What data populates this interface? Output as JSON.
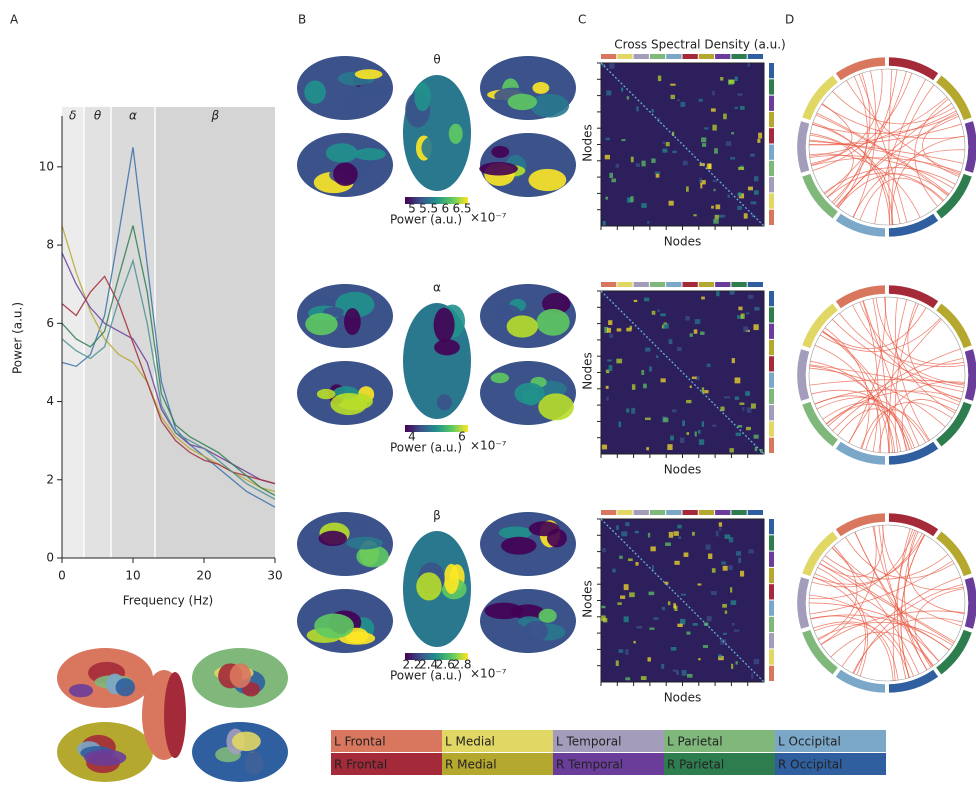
{
  "panel_labels": [
    "A",
    "B",
    "C",
    "D"
  ],
  "chart_data": {
    "type": "line",
    "xlabel": "Frequency (Hz)",
    "ylabel": "Power (a.u.)",
    "xlim": [
      0,
      30
    ],
    "ylim": [
      0,
      11.3
    ],
    "xticks": [
      0,
      10,
      20,
      30
    ],
    "yticks": [
      0,
      2,
      4,
      6,
      8,
      10
    ],
    "x": [
      0,
      2,
      4,
      6,
      8,
      10,
      12,
      14,
      16,
      18,
      20,
      22,
      24,
      26,
      28,
      30
    ],
    "bands": [
      {
        "label": "δ",
        "range": [
          0,
          3
        ],
        "color": "#ececec"
      },
      {
        "label": "θ",
        "range": [
          3.2,
          6.8
        ],
        "color": "#e2e2e2"
      },
      {
        "label": "α",
        "range": [
          7,
          13
        ],
        "color": "#dadada"
      },
      {
        "label": "β",
        "range": [
          13.2,
          30
        ],
        "color": "#d5d5d5"
      }
    ],
    "series": [
      {
        "color": "#3b6ea8",
        "values": [
          5.0,
          4.9,
          5.2,
          6.2,
          8.3,
          10.5,
          7.5,
          4.5,
          3.3,
          2.9,
          2.6,
          2.3,
          2.0,
          1.7,
          1.5,
          1.3
        ]
      },
      {
        "color": "#b5a82f",
        "values": [
          8.5,
          7.3,
          6.3,
          5.6,
          5.2,
          5.0,
          4.5,
          3.6,
          3.1,
          2.8,
          2.6,
          2.4,
          2.2,
          2.0,
          1.8,
          1.7
        ]
      },
      {
        "color": "#6a3d9a",
        "values": [
          7.8,
          7.0,
          6.4,
          6.0,
          5.8,
          5.6,
          5.0,
          3.8,
          3.2,
          2.9,
          2.8,
          2.6,
          2.4,
          2.2,
          2.0,
          1.9
        ]
      },
      {
        "color": "#a42a3a",
        "values": [
          6.5,
          6.2,
          6.8,
          7.2,
          6.5,
          5.5,
          4.5,
          3.5,
          3.0,
          2.7,
          2.5,
          2.4,
          2.2,
          2.1,
          2.0,
          1.9
        ]
      },
      {
        "color": "#2e7d4f",
        "values": [
          6.0,
          5.6,
          5.4,
          5.8,
          7.2,
          8.5,
          6.8,
          4.2,
          3.4,
          3.1,
          2.9,
          2.7,
          2.4,
          2.1,
          1.8,
          1.6
        ]
      },
      {
        "color": "#4a8f8f",
        "values": [
          5.6,
          5.3,
          5.1,
          5.4,
          6.6,
          7.6,
          6.0,
          3.9,
          3.2,
          3.0,
          2.8,
          2.5,
          2.2,
          1.9,
          1.7,
          1.5
        ]
      }
    ]
  },
  "brain_rows": [
    {
      "title": "θ",
      "colorbar_label": "Power (a.u.)",
      "exponent": "×10⁻⁷",
      "ticks": [
        "5",
        "5.5",
        "6",
        "6.5"
      ]
    },
    {
      "title": "α",
      "colorbar_label": "Power (a.u.)",
      "exponent": "×10⁻⁷",
      "ticks": [
        "4",
        "6"
      ]
    },
    {
      "title": "β",
      "colorbar_label": "Power (a.u.)",
      "exponent": "×10⁻⁷",
      "ticks": [
        "2.2",
        "2.4",
        "2.6",
        "2.8"
      ]
    }
  ],
  "matrix_title": "Cross Spectral Density (a.u.)",
  "matrix_axis_label": "Nodes",
  "regions": [
    {
      "name": "L Frontal",
      "color": "#d9775e"
    },
    {
      "name": "L Medial",
      "color": "#e1d764"
    },
    {
      "name": "L Temporal",
      "color": "#a39dbb"
    },
    {
      "name": "L Parietal",
      "color": "#7fb87a"
    },
    {
      "name": "L Occipital",
      "color": "#7ba7c9"
    },
    {
      "name": "R Frontal",
      "color": "#a42a3a"
    },
    {
      "name": "R Medial",
      "color": "#b5a82f"
    },
    {
      "name": "R Temporal",
      "color": "#6a3d9a"
    },
    {
      "name": "R Parietal",
      "color": "#2e7d4f"
    },
    {
      "name": "R Occipital",
      "color": "#2f5f9f"
    }
  ]
}
